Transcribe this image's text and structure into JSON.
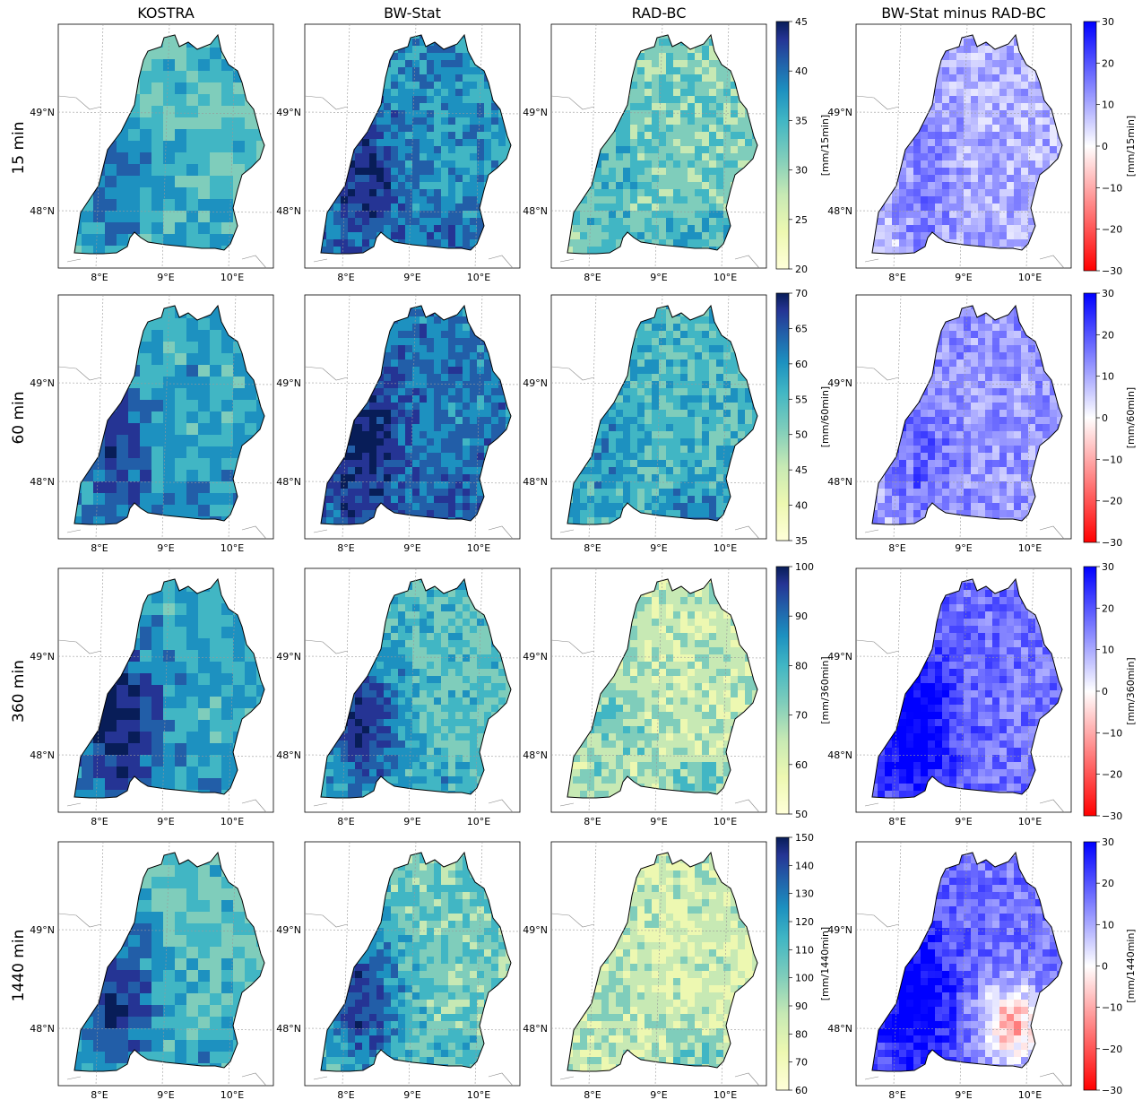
{
  "columns": {
    "kostra": "KOSTRA",
    "bwstat": "BW-Stat",
    "radbc": "RAD-BC",
    "diff": "BW-Stat minus RAD-BC"
  },
  "rows": [
    {
      "label": "15 min",
      "cbar": {
        "label": "[mm/15min]",
        "min": 20,
        "max": 45,
        "ticks": [
          "20",
          "25",
          "30",
          "35",
          "40",
          "45"
        ]
      },
      "dcbar": {
        "label": "[mm/15min]",
        "ticks": [
          "30",
          "20",
          "10",
          "0",
          "−10",
          "−20",
          "−30"
        ]
      }
    },
    {
      "label": "60 min",
      "cbar": {
        "label": "[mm/60min]",
        "min": 35,
        "max": 70,
        "ticks": [
          "35",
          "40",
          "45",
          "50",
          "55",
          "60",
          "65",
          "70"
        ]
      },
      "dcbar": {
        "label": "[mm/60min]",
        "ticks": [
          "30",
          "20",
          "10",
          "0",
          "−10",
          "−20",
          "−30"
        ]
      }
    },
    {
      "label": "360 min",
      "cbar": {
        "label": "[mm/360min]",
        "min": 50,
        "max": 100,
        "ticks": [
          "50",
          "60",
          "70",
          "80",
          "90",
          "100"
        ]
      },
      "dcbar": {
        "label": "[mm/360min]",
        "ticks": [
          "30",
          "20",
          "10",
          "0",
          "−10",
          "−20",
          "−30"
        ]
      }
    },
    {
      "label": "1440 min",
      "cbar": {
        "label": "[mm/1440min]",
        "min": 60,
        "max": 150,
        "ticks": [
          "60",
          "70",
          "80",
          "90",
          "100",
          "110",
          "120",
          "130",
          "140",
          "150"
        ]
      },
      "dcbar": {
        "label": "[mm/1440min]",
        "ticks": [
          "30",
          "20",
          "10",
          "0",
          "−10",
          "−20",
          "−30"
        ]
      }
    }
  ],
  "axes": {
    "lon_ticks": [
      "8°E",
      "9°E",
      "10°E"
    ],
    "lat_ticks": [
      "49°N",
      "48°N"
    ]
  },
  "colors": {
    "ygb_low": "#ffffd9",
    "ygb_mid": "#41b6c4",
    "ygb_high": "#081d58",
    "div_blue": "#0000ff",
    "div_white": "#ffffff",
    "div_red": "#ff0000"
  }
}
